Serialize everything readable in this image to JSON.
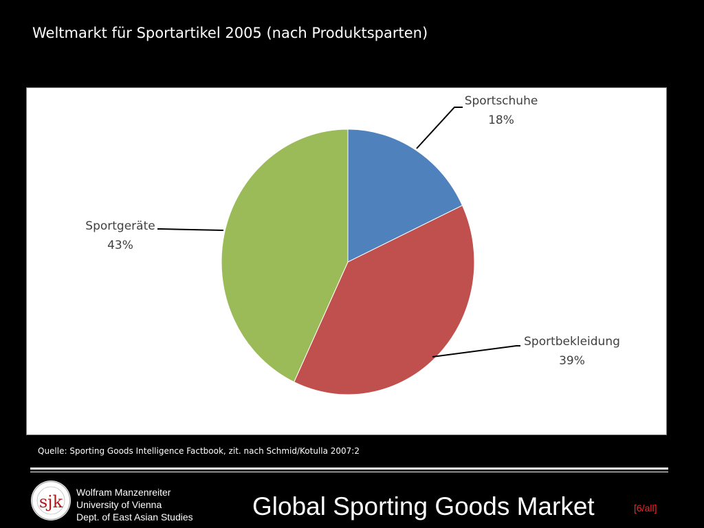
{
  "slide": {
    "title": "Weltmarkt für Sportartikel 2005 (nach Produktsparten)",
    "source": "Quelle: Sporting Goods Intelligence Factbook, zit. nach Schmid/Kotulla 2007:2"
  },
  "chart_data": {
    "type": "pie",
    "title": "",
    "slices": [
      {
        "label": "Sportschuhe",
        "value": 18,
        "value_label": "18%",
        "color": "#4f81bd"
      },
      {
        "label": "Sportbekleidung",
        "value": 39,
        "value_label": "39%",
        "color": "#c0504d"
      },
      {
        "label": "Sportgeräte",
        "value": 43,
        "value_label": "43%",
        "color": "#9bbb59"
      }
    ],
    "legend": "none",
    "data_labels": "outside with leader lines"
  },
  "footer": {
    "logo_text": "sjk",
    "author_name": "Wolfram Manzenreiter",
    "author_university": "University of Vienna",
    "author_department": "Dept. of East Asian Studies",
    "title": "Global Sporting Goods Market",
    "page_ref": "[6/all]"
  },
  "colors": {
    "background": "#000000",
    "panel": "#ffffff",
    "page_ref": "#ff2020"
  }
}
